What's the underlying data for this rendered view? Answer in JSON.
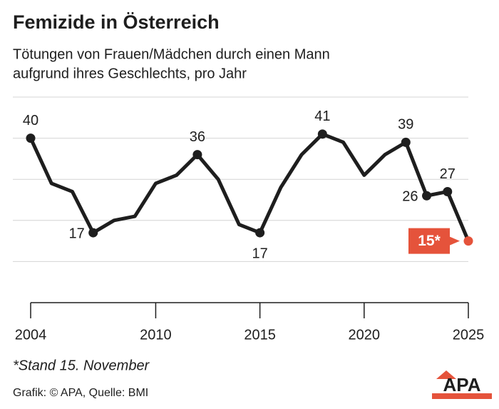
{
  "chart_data": {
    "type": "line",
    "title": "Femizide in Österreich",
    "subtitle": [
      "Tötungen von Frauen/Mädchen durch einen Mann",
      "aufgrund ihres Geschlechts, pro Jahr"
    ],
    "x": [
      2004,
      2005,
      2006,
      2007,
      2008,
      2009,
      2010,
      2011,
      2012,
      2013,
      2014,
      2015,
      2016,
      2017,
      2018,
      2019,
      2020,
      2021,
      2022,
      2023,
      2024,
      2025
    ],
    "values": [
      40,
      29,
      27,
      17,
      20,
      21,
      29,
      31,
      36,
      30,
      19,
      17,
      28,
      36,
      41,
      39,
      31,
      36,
      39,
      26,
      27,
      15
    ],
    "value_labels": [
      "40",
      null,
      null,
      "17",
      null,
      null,
      null,
      null,
      "36",
      null,
      null,
      "17",
      null,
      null,
      "41",
      null,
      null,
      null,
      "39",
      "26",
      "27",
      "15*"
    ],
    "color": "#1e1e1e",
    "last_point_color": "#e5533b",
    "xlim": [
      2004,
      2025
    ],
    "xticks": [
      2004,
      2010,
      2015,
      2020,
      2025
    ],
    "ylim": [
      0,
      50
    ],
    "yticks": [
      10,
      20,
      30,
      40,
      50
    ],
    "grid": true,
    "footnote": "*Stand 15. November",
    "source": "Grafik: © APA, Quelle: BMI",
    "logo": "APA"
  }
}
